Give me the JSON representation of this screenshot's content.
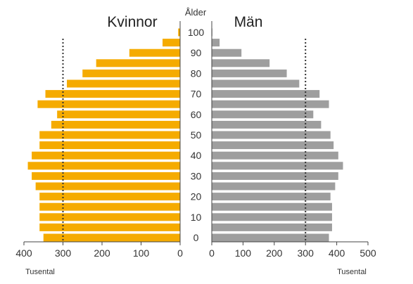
{
  "chart_data": {
    "type": "bar",
    "title_left": "Kvinnor",
    "title_right": "Män",
    "age_axis_label": "Ålder",
    "unit_label_left": "Tusental",
    "unit_label_right": "Tusental",
    "age_ticks": [
      "0",
      "10",
      "20",
      "30",
      "40",
      "50",
      "60",
      "70",
      "80",
      "90",
      "100"
    ],
    "women_ticks": [
      "400",
      "300",
      "200",
      "100",
      "0"
    ],
    "men_ticks": [
      "0",
      "100",
      "200",
      "300",
      "400",
      "500"
    ],
    "women_xlim": [
      0,
      400
    ],
    "men_xlim": [
      0,
      500
    ],
    "reference_line": 300,
    "age_groups": [
      "0",
      "5",
      "10",
      "15",
      "20",
      "25",
      "30",
      "35",
      "40",
      "45",
      "50",
      "55",
      "60",
      "65",
      "70",
      "75",
      "80",
      "85",
      "90",
      "95",
      "100"
    ],
    "series": [
      {
        "name": "Kvinnor",
        "color": "#f5ab00",
        "values": [
          350,
          360,
          360,
          360,
          360,
          370,
          380,
          390,
          380,
          360,
          360,
          330,
          315,
          365,
          345,
          290,
          250,
          215,
          130,
          45,
          5
        ]
      },
      {
        "name": "Män",
        "color": "#9e9e9e",
        "values": [
          375,
          385,
          385,
          385,
          380,
          395,
          405,
          420,
          405,
          390,
          380,
          350,
          325,
          375,
          345,
          280,
          240,
          185,
          95,
          25,
          2
        ]
      }
    ]
  }
}
